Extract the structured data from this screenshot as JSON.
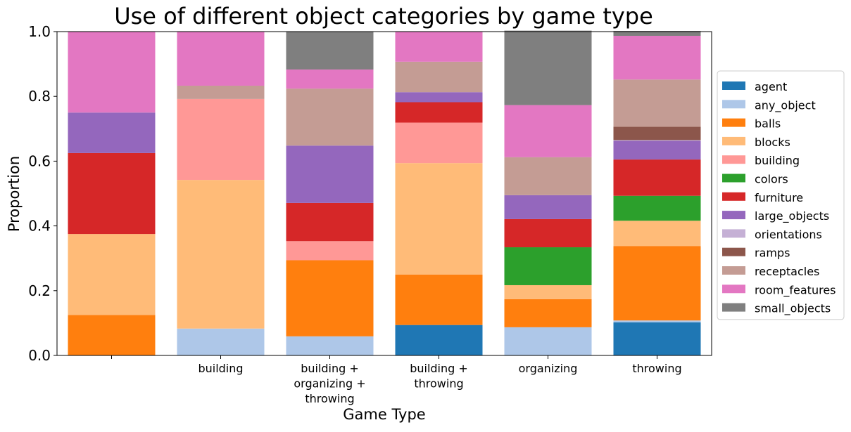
{
  "chart_data": {
    "type": "bar",
    "stacked": true,
    "title": "Use of different object categories by game type",
    "xlabel": "Game Type",
    "ylabel": "Proportion",
    "ylim": [
      0,
      1.0
    ],
    "yticks": [
      "0.0",
      "0.2",
      "0.4",
      "0.6",
      "0.8",
      "1.0"
    ],
    "grid": false,
    "legend_position": "right",
    "categories": [
      [
        ""
      ],
      [
        "building"
      ],
      [
        "building +",
        "organizing +",
        "throwing"
      ],
      [
        "building +",
        "throwing"
      ],
      [
        "organizing"
      ],
      [
        "throwing"
      ]
    ],
    "series": [
      {
        "name": "agent",
        "color": "#1f77b4",
        "values": [
          0,
          0,
          0,
          0.094,
          0,
          0.102
        ]
      },
      {
        "name": "any_object",
        "color": "#aec7e8",
        "values": [
          0,
          0.083,
          0.059,
          0,
          0.087,
          0.006
        ]
      },
      {
        "name": "balls",
        "color": "#ff7f0e",
        "values": [
          0.125,
          0,
          0.235,
          0.156,
          0.087,
          0.23
        ]
      },
      {
        "name": "blocks",
        "color": "#ffbb78",
        "values": [
          0.25,
          0.459,
          0,
          0.344,
          0.043,
          0.078
        ]
      },
      {
        "name": "building",
        "color": "#ff9896",
        "values": [
          0,
          0.25,
          0.059,
          0.125,
          0,
          0
        ]
      },
      {
        "name": "colors",
        "color": "#2ca02c",
        "values": [
          0,
          0,
          0,
          0,
          0.117,
          0.077
        ]
      },
      {
        "name": "furniture",
        "color": "#d62728",
        "values": [
          0.25,
          0,
          0.118,
          0.063,
          0.087,
          0.112
        ]
      },
      {
        "name": "large_objects",
        "color": "#9467bd",
        "values": [
          0.125,
          0,
          0.177,
          0.031,
          0.074,
          0.058
        ]
      },
      {
        "name": "orientations",
        "color": "#c5b0d5",
        "values": [
          0,
          0,
          0,
          0,
          0,
          0.002
        ]
      },
      {
        "name": "ramps",
        "color": "#8c564b",
        "values": [
          0,
          0,
          0,
          0,
          0,
          0.041
        ]
      },
      {
        "name": "receptacles",
        "color": "#c49c94",
        "values": [
          0,
          0.041,
          0.176,
          0.094,
          0.117,
          0.146
        ]
      },
      {
        "name": "room_features",
        "color": "#e377c2",
        "values": [
          0.25,
          0.167,
          0.059,
          0.093,
          0.161,
          0.135
        ]
      },
      {
        "name": "small_objects",
        "color": "#7f7f7f",
        "values": [
          0,
          0,
          0.117,
          0,
          0.23,
          0.015
        ]
      }
    ]
  }
}
